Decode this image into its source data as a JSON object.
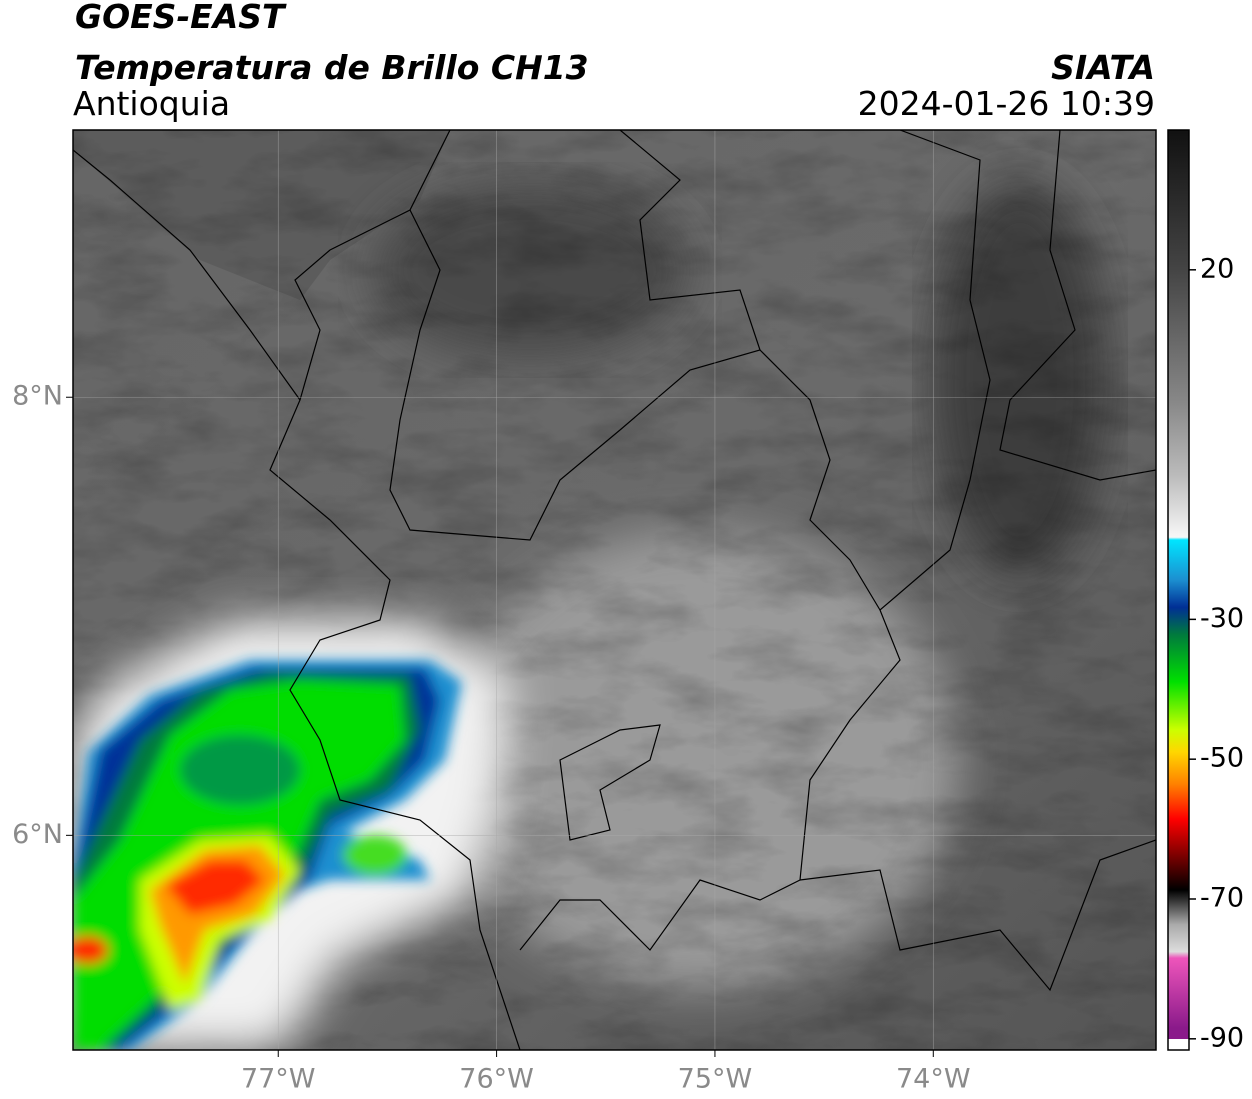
{
  "header": {
    "satellite": "GOES-EAST",
    "product": "Temperatura de Brillo CH13",
    "region": "Antioquia",
    "source": "SIATA",
    "datetime": "2024-01-26 10:39"
  },
  "map": {
    "lonlim": [
      -77.94,
      -72.98
    ],
    "latlim": [
      5.02,
      9.22
    ],
    "lat_ticks": [
      {
        "value": 8,
        "label": "8°N"
      },
      {
        "value": 6,
        "label": "6°N"
      }
    ],
    "lon_ticks": [
      {
        "value": -77,
        "label": "77°W"
      },
      {
        "value": -76,
        "label": "76°W"
      },
      {
        "value": -75,
        "label": "75°W"
      },
      {
        "value": -74,
        "label": "74°W"
      }
    ]
  },
  "colorbar": {
    "lim": [
      -91.6,
      40
    ],
    "ticks": [
      20,
      -30,
      -50,
      -70,
      -90
    ]
  }
}
